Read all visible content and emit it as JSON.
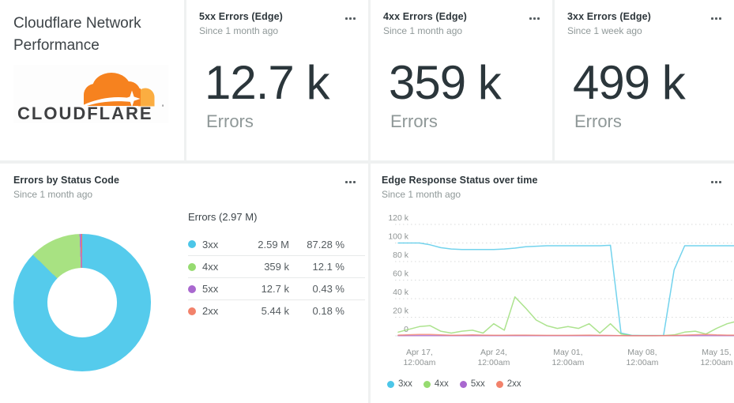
{
  "title_card": {
    "line1": "Cloudflare Network",
    "line2": "Performance",
    "logo_text": "CLOUDFLARE"
  },
  "stat_cards": [
    {
      "title": "5xx Errors (Edge)",
      "subtitle": "Since 1 month ago",
      "value": "12.7 k",
      "unit": "Errors"
    },
    {
      "title": "4xx Errors (Edge)",
      "subtitle": "Since 1 month ago",
      "value": "359 k",
      "unit": "Errors"
    },
    {
      "title": "3xx Errors (Edge)",
      "subtitle": "Since 1 week ago",
      "value": "499 k",
      "unit": "Errors"
    }
  ],
  "donut_card": {
    "title": "Errors by Status Code",
    "subtitle": "Since 1 month ago",
    "table_header": "Errors (2.97 M)",
    "rows": [
      {
        "label": "3xx",
        "value": "2.59 M",
        "percent": "87.28 %"
      },
      {
        "label": "4xx",
        "value": "359 k",
        "percent": "12.1 %"
      },
      {
        "label": "5xx",
        "value": "12.7 k",
        "percent": "0.43 %"
      },
      {
        "label": "2xx",
        "value": "5.44 k",
        "percent": "0.18 %"
      }
    ]
  },
  "line_card": {
    "title": "Edge Response Status over time",
    "subtitle": "Since 1 month ago",
    "legend": [
      {
        "label": "3xx"
      },
      {
        "label": "4xx"
      },
      {
        "label": "5xx"
      },
      {
        "label": "2xx"
      }
    ]
  },
  "chart_data": [
    {
      "type": "pie",
      "title": "Errors by Status Code",
      "total_label": "Errors (2.97 M)",
      "donut": true,
      "slices": [
        {
          "label": "3xx",
          "value_text": "2.59 M",
          "value": 2590000,
          "percent": 87.28,
          "color": "#55cbec"
        },
        {
          "label": "4xx",
          "value_text": "359 k",
          "value": 359000,
          "percent": 12.1,
          "color": "#a8e282"
        },
        {
          "label": "5xx",
          "value_text": "12.7 k",
          "value": 12700,
          "percent": 0.43,
          "color": "#b377d0"
        },
        {
          "label": "2xx",
          "value_text": "5.44 k",
          "value": 5440,
          "percent": 0.18,
          "color": "#f4795a"
        }
      ]
    },
    {
      "type": "line",
      "title": "Edge Response Status over time",
      "unit": "thousands of errors (k)",
      "ylim": [
        0,
        120
      ],
      "grid": "dotted horizontal",
      "x_start": "Apr 15, 12:00am",
      "x_step": "1 day",
      "y_ticks": [
        {
          "label": "120 k",
          "value": 120
        },
        {
          "label": "100 k",
          "value": 100
        },
        {
          "label": "80 k",
          "value": 80
        },
        {
          "label": "60 k",
          "value": 60
        },
        {
          "label": "40 k",
          "value": 40
        },
        {
          "label": "20 k",
          "value": 20
        },
        {
          "label": "0",
          "value": 0
        }
      ],
      "x_ticks": [
        {
          "index": 2,
          "line1": "Apr 17,",
          "line2": "12:00am"
        },
        {
          "index": 9,
          "line1": "Apr 24,",
          "line2": "12:00am"
        },
        {
          "index": 16,
          "line1": "May 01,",
          "line2": "12:00am"
        },
        {
          "index": 23,
          "line1": "May 08,",
          "line2": "12:00am"
        },
        {
          "index": 30,
          "line1": "May 15,",
          "line2": "12:00am"
        }
      ],
      "series": [
        {
          "name": "3xx",
          "color": "#4cc6e8",
          "values": [
            100,
            100,
            100,
            98,
            95,
            93.5,
            93,
            93,
            93,
            93,
            93.5,
            94.5,
            96,
            96.5,
            97,
            97,
            97,
            97,
            97,
            97,
            97.5,
            3,
            0.5,
            0.3,
            0.3,
            0.3,
            71,
            97,
            97,
            97,
            97,
            97,
            97
          ]
        },
        {
          "name": "4xx",
          "color": "#96db70",
          "values": [
            4,
            7,
            10,
            11,
            5,
            3,
            5,
            6,
            3,
            13,
            6,
            42,
            30,
            17,
            11,
            8,
            10,
            8,
            13,
            3,
            13,
            2,
            0.3,
            0.3,
            0.3,
            0.3,
            1,
            4,
            5,
            2,
            8,
            13,
            16
          ]
        },
        {
          "name": "5xx",
          "color": "#a968cf",
          "values": [
            0.15,
            0.15,
            0.15,
            0.15,
            0.15,
            0.15,
            0.15,
            0.15,
            0.15,
            0.15,
            0.15,
            0.15,
            0.15,
            0.15,
            0.15,
            0.15,
            0.15,
            0.15,
            0.15,
            0.15,
            0.15,
            0.15,
            0.15,
            0.15,
            0.15,
            0.15,
            0.15,
            0.15,
            0.15,
            0.15,
            0.15,
            0.15,
            0.15
          ]
        },
        {
          "name": "2xx",
          "color": "#f2826b",
          "values": [
            0.8,
            1.2,
            1.5,
            1.5,
            1,
            0.6,
            0.8,
            1,
            0.8,
            0.6,
            0.6,
            0.8,
            0.8,
            0.6,
            0.5,
            0.5,
            0.5,
            0.6,
            0.8,
            0.5,
            0.4,
            0.2,
            0.1,
            0.1,
            0.1,
            0.2,
            0.4,
            0.8,
            1.2,
            1.5,
            1,
            0.8,
            0.8
          ]
        }
      ]
    }
  ]
}
